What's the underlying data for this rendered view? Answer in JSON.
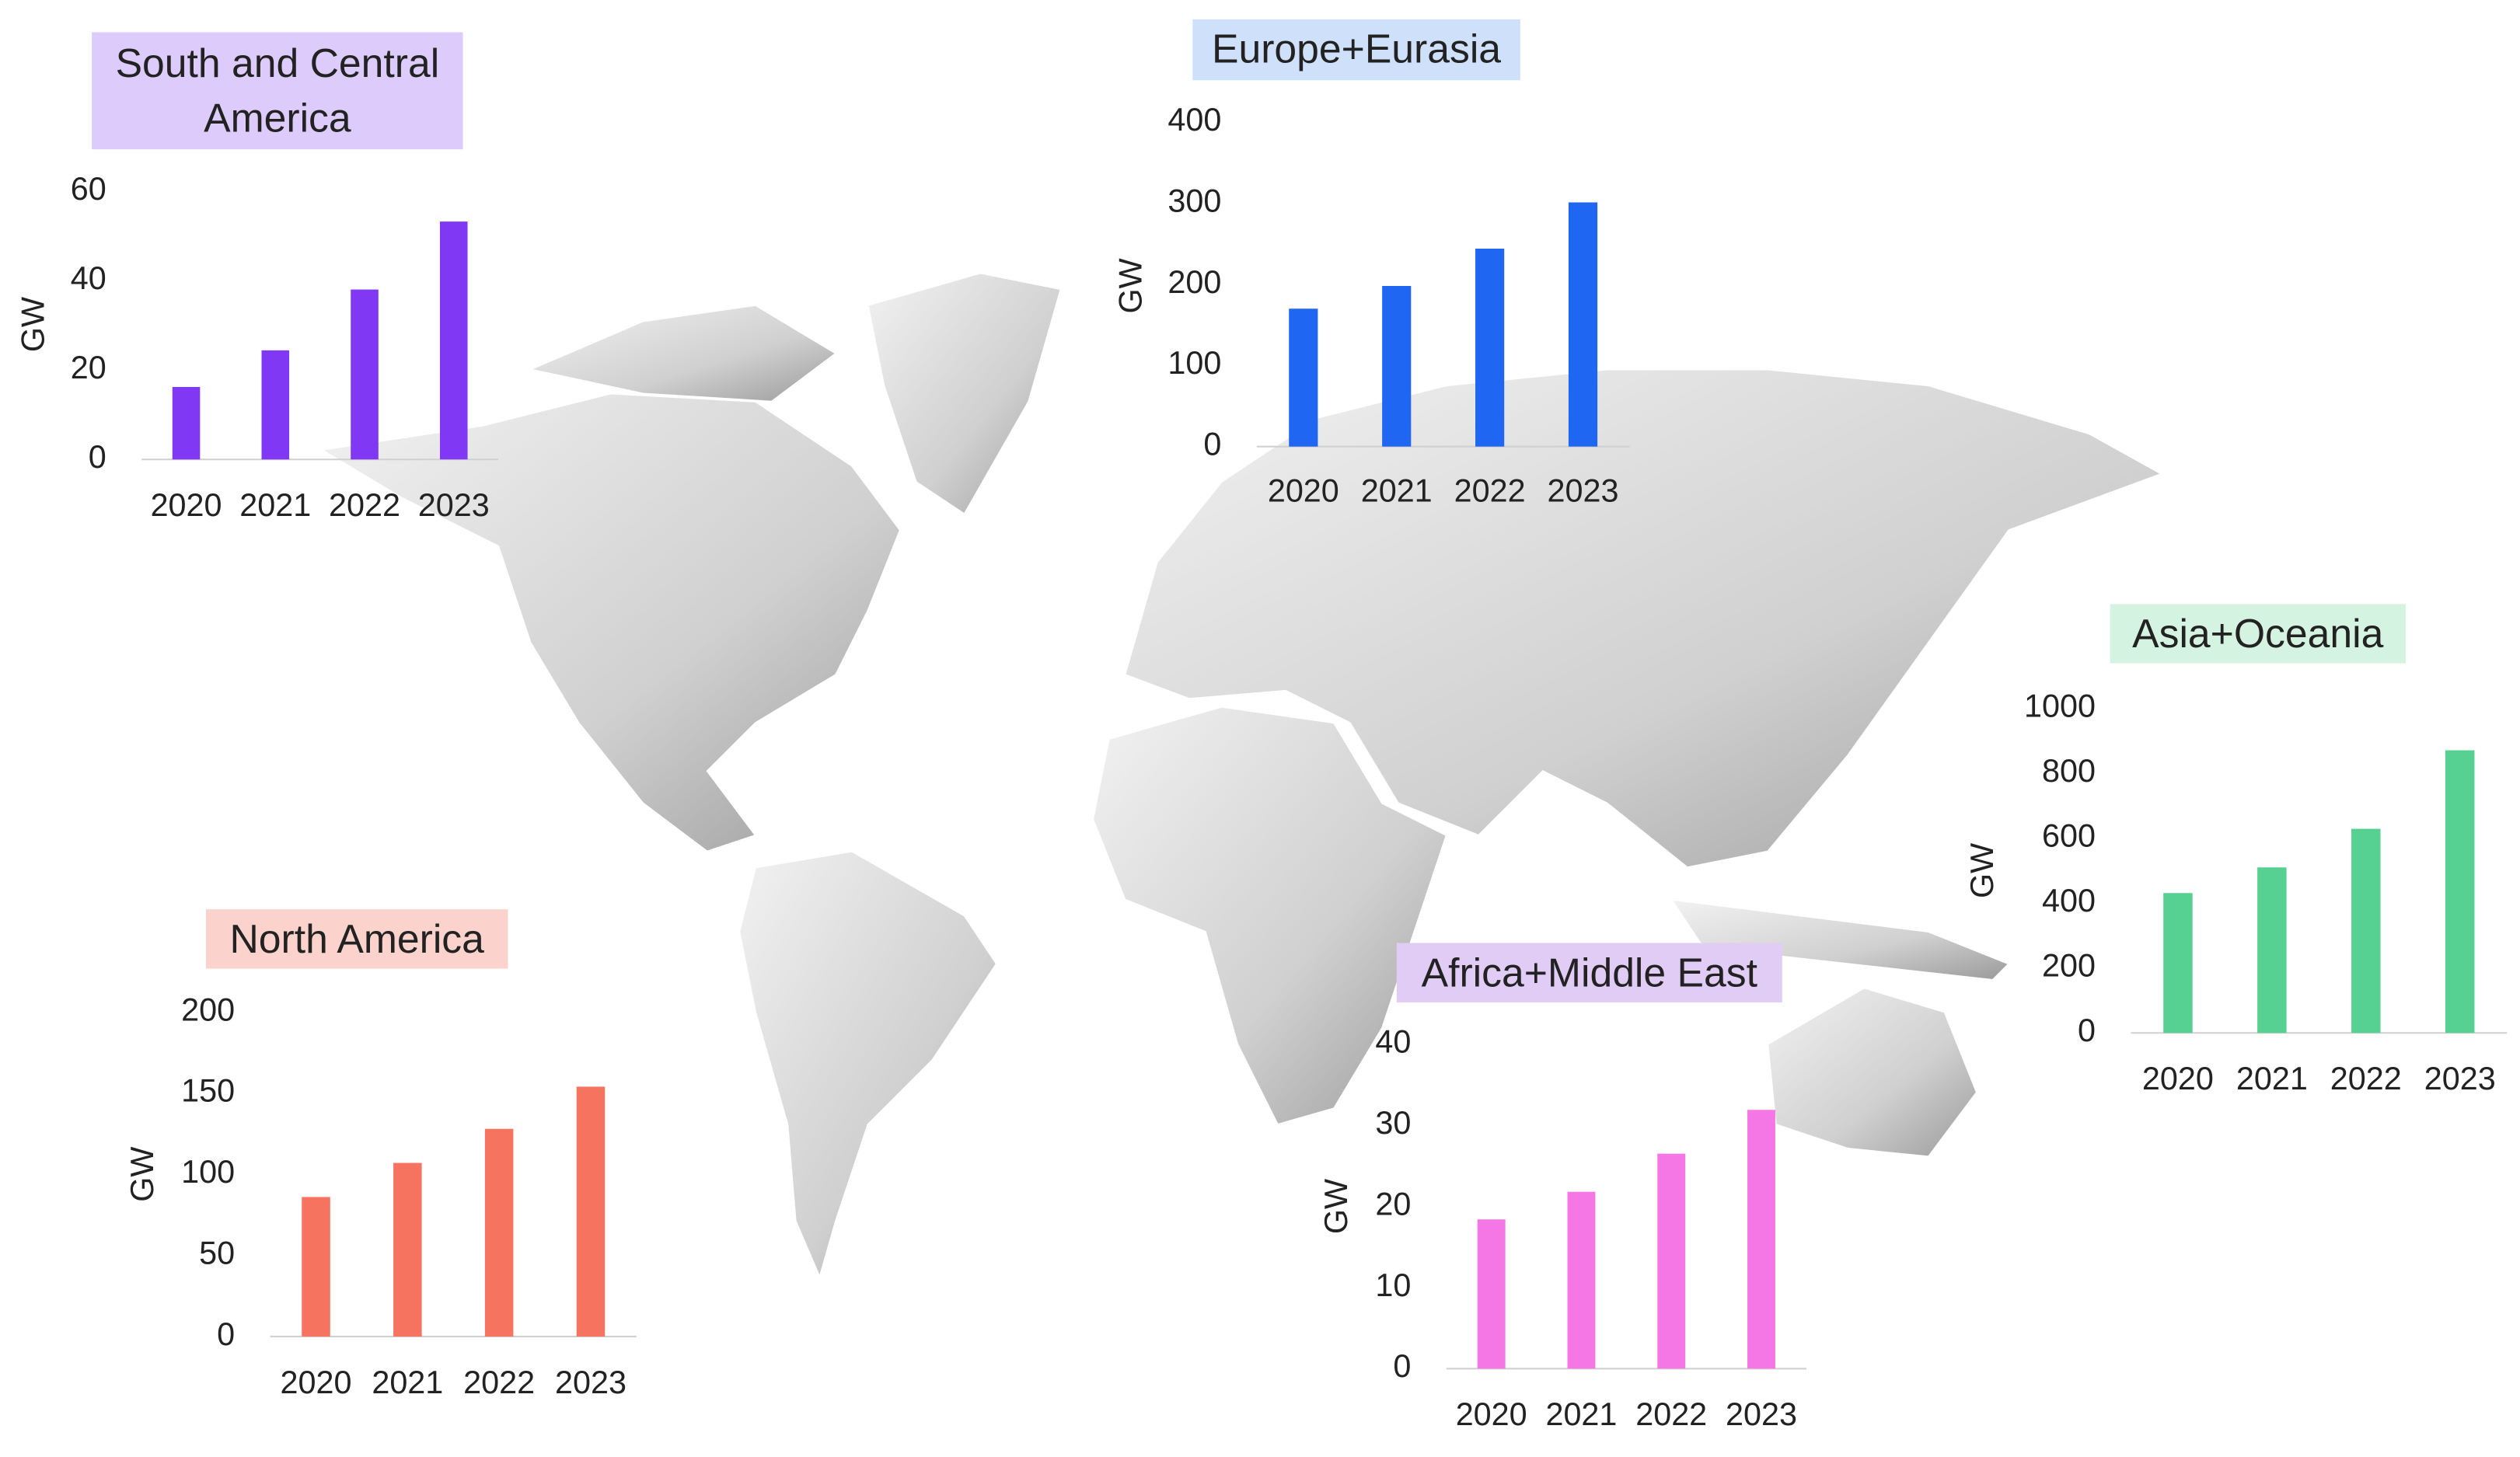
{
  "chart_data": [
    {
      "type": "bar",
      "title": "South and Central America",
      "title_background": "#dccbfb",
      "y_label": "GW",
      "categories": [
        "2020",
        "2021",
        "2022",
        "2023"
      ],
      "values": [
        16.2,
        24.4,
        38,
        53.2
      ],
      "color": "#8038f5",
      "ylim": [
        0,
        60
      ],
      "yticks": [
        0,
        20,
        40,
        60
      ]
    },
    {
      "type": "bar",
      "title": "Europe+Eurasia",
      "title_background": "#cfe0fb",
      "y_label": "GW",
      "categories": [
        "2020",
        "2021",
        "2022",
        "2023"
      ],
      "values": [
        170,
        198,
        244,
        301
      ],
      "color": "#1f66f2",
      "ylim": [
        0,
        400
      ],
      "yticks": [
        0,
        100,
        200,
        300,
        400
      ]
    },
    {
      "type": "bar",
      "title": "Asia+Oceania",
      "title_background": "#d5f3e1",
      "y_label": "GW",
      "categories": [
        "2020",
        "2021",
        "2022",
        "2023"
      ],
      "values": [
        431,
        510,
        629,
        871
      ],
      "color": "#57d191",
      "ylim": [
        0,
        1000
      ],
      "yticks": [
        0,
        200,
        400,
        600,
        800,
        1000
      ]
    },
    {
      "type": "bar",
      "title": "North America",
      "title_background": "#fbd3cc",
      "y_label": "GW",
      "categories": [
        "2020",
        "2021",
        "2022",
        "2023"
      ],
      "values": [
        86,
        107,
        128,
        154
      ],
      "color": "#f6735f",
      "ylim": [
        0,
        200
      ],
      "yticks": [
        0,
        50,
        100,
        150,
        200
      ]
    },
    {
      "type": "bar",
      "title": "Africa+Middle East",
      "title_background": "#e1ccf6",
      "y_label": "GW",
      "categories": [
        "2020",
        "2021",
        "2022",
        "2023"
      ],
      "values": [
        18.4,
        21.8,
        26.5,
        31.9
      ],
      "color": "#f577e5",
      "ylim": [
        0,
        40
      ],
      "yticks": [
        0,
        10,
        20,
        30,
        40
      ]
    }
  ]
}
